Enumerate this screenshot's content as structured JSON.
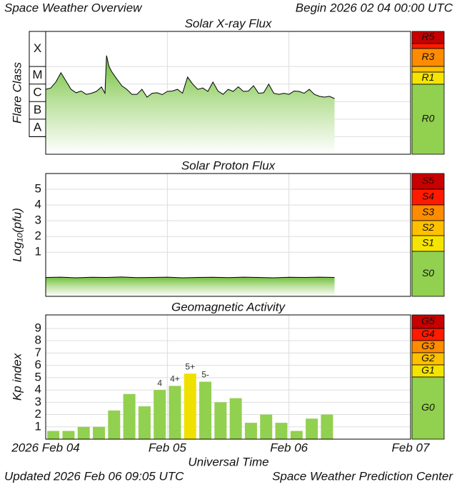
{
  "header": {
    "title": "Space Weather Overview",
    "begin": "Begin 2026 02 04 00:00 UTC"
  },
  "chart_data": [
    {
      "type": "line",
      "title": "Solar X-ray Flux",
      "y_label": "Flare Class",
      "log_scale": true,
      "grid": true,
      "xlim": [
        0,
        72
      ],
      "xticks": [
        0,
        24,
        48,
        72
      ],
      "ylim": [
        1e-09,
        0.01
      ],
      "yticks": [
        {
          "value": 1e-08,
          "label": "A"
        },
        {
          "value": 1e-07,
          "label": "B"
        },
        {
          "value": 1e-06,
          "label": "C"
        },
        {
          "value": 1e-05,
          "label": "M"
        },
        {
          "value": 0.0001,
          "label": "X"
        }
      ],
      "scale_labels": [
        "R5",
        "R3",
        "R1",
        "R0"
      ],
      "color": "#000000",
      "x": [
        0,
        1,
        2,
        3,
        4,
        5,
        6,
        7,
        8,
        9,
        10,
        11,
        11.7,
        12,
        12.5,
        13,
        14,
        15,
        16,
        17,
        18,
        19,
        20,
        21,
        22,
        23,
        24,
        25,
        26,
        27,
        28,
        29,
        30,
        31,
        32,
        33,
        34,
        35,
        36,
        37,
        38,
        39,
        40,
        41,
        42,
        43,
        44,
        45,
        46,
        47,
        48,
        49,
        50,
        51,
        52,
        53,
        54,
        55,
        56,
        57
      ],
      "values": [
        5e-06,
        6e-06,
        1.3e-05,
        4.4e-05,
        1.5e-05,
        5e-06,
        3.2e-06,
        4e-06,
        2.6e-06,
        3e-06,
        3.8e-06,
        6.8e-06,
        3e-06,
        0.00042,
        0.0001,
        5.2e-05,
        2e-05,
        8.1e-06,
        5e-06,
        2.6e-06,
        2.6e-06,
        5e-06,
        1.8e-06,
        3e-06,
        3.2e-06,
        2.5e-06,
        3.8e-06,
        4e-06,
        5e-06,
        3e-06,
        2.5e-05,
        1e-05,
        5e-06,
        6e-06,
        3.8e-06,
        1.3e-05,
        4e-06,
        2.6e-06,
        5e-06,
        3.8e-06,
        7e-06,
        3.8e-06,
        4e-06,
        8.1e-06,
        3e-06,
        3.2e-06,
        9.8e-06,
        3e-06,
        2.6e-06,
        3e-06,
        2.6e-06,
        4e-06,
        3.8e-06,
        3e-06,
        5e-06,
        2.6e-06,
        2e-06,
        1.8e-06,
        2e-06,
        1.5e-06
      ]
    },
    {
      "type": "line",
      "title": "Solar Proton Flux",
      "y_label": "Log₁₀(pfu)",
      "grid": true,
      "xlim": [
        0,
        72
      ],
      "xticks": [
        0,
        24,
        48,
        72
      ],
      "ylim": [
        -1.8,
        6
      ],
      "yticks": [
        1,
        2,
        3,
        4,
        5
      ],
      "scale_labels": [
        "S5",
        "S4",
        "S3",
        "S2",
        "S1",
        "S0"
      ],
      "color": "#000000",
      "x": [
        0,
        3,
        6,
        9,
        12,
        15,
        18,
        21,
        24,
        27,
        30,
        33,
        36,
        39,
        42,
        45,
        48,
        51,
        54,
        57
      ],
      "values": [
        -0.6,
        -0.58,
        -0.62,
        -0.59,
        -0.6,
        -0.57,
        -0.61,
        -0.6,
        -0.58,
        -0.62,
        -0.6,
        -0.59,
        -0.61,
        -0.58,
        -0.6,
        -0.62,
        -0.59,
        -0.6,
        -0.58,
        -0.6
      ]
    },
    {
      "type": "bar",
      "title": "Geomagnetic Activity",
      "y_label": "Kp index",
      "x_label": "Universal Time",
      "grid": true,
      "xlim": [
        0,
        72
      ],
      "xticks": [
        {
          "value": 0,
          "label": "2026 Feb 04"
        },
        {
          "value": 24,
          "label": "Feb 05"
        },
        {
          "value": 48,
          "label": "Feb 06"
        },
        {
          "value": 72,
          "label": "Feb 07"
        }
      ],
      "ylim": [
        0,
        10.1
      ],
      "yticks": [
        1,
        2,
        3,
        4,
        5,
        6,
        7,
        8,
        9
      ],
      "scale_labels": [
        "G5",
        "G4",
        "G3",
        "G2",
        "G1",
        "G0"
      ],
      "x": [
        1.5,
        4.5,
        7.5,
        10.5,
        13.5,
        16.5,
        19.5,
        22.5,
        25.5,
        28.5,
        31.5,
        34.5,
        37.5,
        40.5,
        43.5,
        46.5,
        49.5,
        52.5,
        55.5
      ],
      "values": [
        0.67,
        0.67,
        1,
        1,
        2.33,
        3.67,
        2.67,
        4,
        4.33,
        5.33,
        4.67,
        3,
        3.33,
        1.33,
        2,
        1.33,
        0.67,
        1.67,
        2
      ],
      "value_labels": [
        null,
        null,
        null,
        null,
        null,
        null,
        null,
        "4",
        "4+",
        "5+",
        "5-",
        null,
        null,
        null,
        null,
        null,
        null,
        null,
        null
      ],
      "colors": [
        "#92d050",
        "#92d050",
        "#92d050",
        "#92d050",
        "#92d050",
        "#92d050",
        "#92d050",
        "#92d050",
        "#92d050",
        "#f0e000",
        "#92d050",
        "#92d050",
        "#92d050",
        "#92d050",
        "#92d050",
        "#92d050",
        "#92d050",
        "#92d050",
        "#92d050"
      ]
    }
  ],
  "footer": {
    "updated": "Updated 2026 Feb 06 09:05 UTC",
    "credit": "Space Weather Prediction Center"
  }
}
